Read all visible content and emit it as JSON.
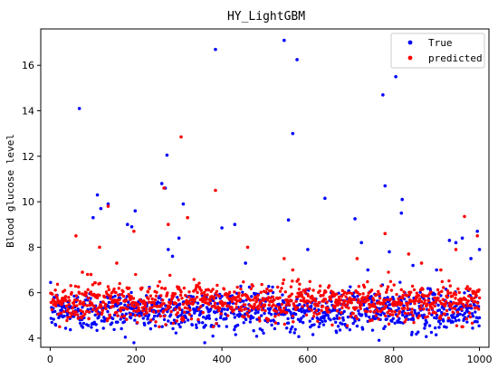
{
  "chart_data": {
    "type": "scatter",
    "title": "HY_LightGBM",
    "xlabel": "",
    "ylabel": "Blood glucose level",
    "xlim": [
      -22,
      1022
    ],
    "ylim": [
      3.6,
      17.6
    ],
    "xticks": [
      0,
      200,
      400,
      600,
      800,
      1000
    ],
    "yticks": [
      4,
      6,
      8,
      10,
      12,
      14,
      16
    ],
    "grid": false,
    "legend": {
      "placement": "top-right"
    },
    "series": [
      {
        "name": "True",
        "color": "#0000ff",
        "outliers": [
          [
            68,
            14.1
          ],
          [
            100,
            9.3
          ],
          [
            110,
            10.3
          ],
          [
            118,
            9.7
          ],
          [
            135,
            9.9
          ],
          [
            180,
            9.0
          ],
          [
            190,
            8.9
          ],
          [
            198,
            9.6
          ],
          [
            260,
            10.8
          ],
          [
            268,
            10.6
          ],
          [
            272,
            12.05
          ],
          [
            275,
            7.9
          ],
          [
            285,
            7.6
          ],
          [
            300,
            8.4
          ],
          [
            310,
            9.9
          ],
          [
            385,
            16.7
          ],
          [
            400,
            8.85
          ],
          [
            430,
            9.0
          ],
          [
            455,
            7.3
          ],
          [
            545,
            17.1
          ],
          [
            555,
            9.2
          ],
          [
            565,
            13.0
          ],
          [
            575,
            16.25
          ],
          [
            600,
            7.9
          ],
          [
            640,
            10.15
          ],
          [
            710,
            9.25
          ],
          [
            725,
            8.2
          ],
          [
            740,
            7.0
          ],
          [
            775,
            14.7
          ],
          [
            780,
            10.7
          ],
          [
            790,
            7.8
          ],
          [
            805,
            15.5
          ],
          [
            820,
            10.1
          ],
          [
            818,
            9.5
          ],
          [
            845,
            7.2
          ],
          [
            900,
            7.0
          ],
          [
            930,
            8.3
          ],
          [
            945,
            8.2
          ],
          [
            960,
            8.4
          ],
          [
            980,
            7.5
          ],
          [
            995,
            8.7
          ],
          [
            1000,
            7.9
          ]
        ],
        "bulk": {
          "n": 1000,
          "x_range": [
            1,
            1000
          ],
          "center": 5.2,
          "spread": 0.45,
          "min": 3.8,
          "max": 6.8
        }
      },
      {
        "name": "predicted",
        "color": "#ff0000",
        "outliers": [
          [
            60,
            8.5
          ],
          [
            75,
            6.9
          ],
          [
            95,
            6.8
          ],
          [
            115,
            8.0
          ],
          [
            135,
            9.8
          ],
          [
            155,
            7.3
          ],
          [
            195,
            8.7
          ],
          [
            265,
            10.6
          ],
          [
            275,
            9.0
          ],
          [
            305,
            12.85
          ],
          [
            320,
            9.3
          ],
          [
            385,
            10.5
          ],
          [
            460,
            8.0
          ],
          [
            545,
            7.5
          ],
          [
            565,
            7.0
          ],
          [
            715,
            7.5
          ],
          [
            780,
            8.6
          ],
          [
            835,
            7.7
          ],
          [
            865,
            7.3
          ],
          [
            910,
            7.0
          ],
          [
            945,
            7.9
          ],
          [
            965,
            9.35
          ],
          [
            995,
            8.5
          ]
        ],
        "bulk": {
          "n": 1000,
          "x_range": [
            1,
            1000
          ],
          "center": 5.6,
          "spread": 0.4,
          "min": 4.5,
          "max": 6.9
        }
      }
    ]
  }
}
